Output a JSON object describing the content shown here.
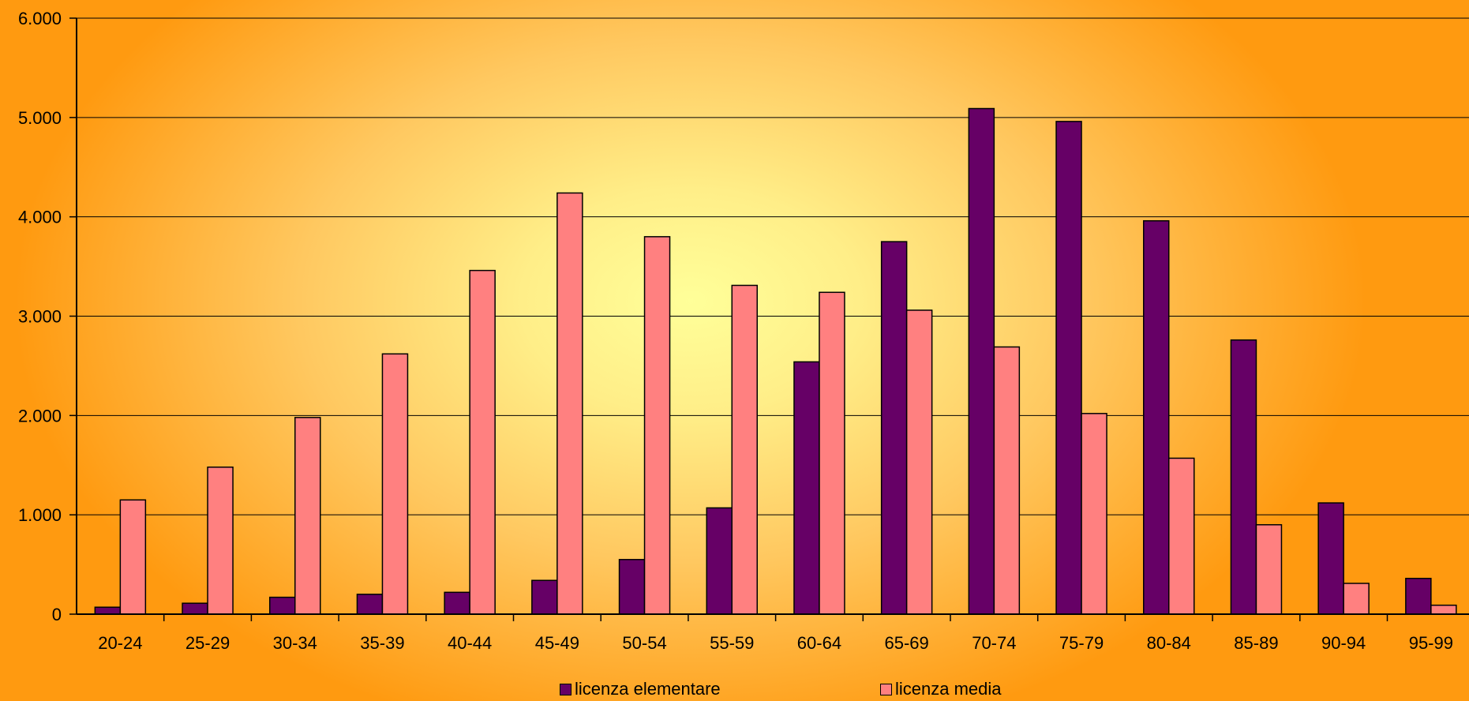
{
  "chart_data": {
    "type": "bar",
    "categories": [
      "20-24",
      "25-29",
      "30-34",
      "35-39",
      "40-44",
      "45-49",
      "50-54",
      "55-59",
      "60-64",
      "65-69",
      "70-74",
      "75-79",
      "80-84",
      "85-89",
      "90-94",
      "95-99"
    ],
    "series": [
      {
        "name": "licenza elementare",
        "color": "#660066",
        "values": [
          70,
          110,
          170,
          200,
          220,
          340,
          550,
          1070,
          2540,
          3750,
          5090,
          4960,
          3960,
          2760,
          1120,
          360
        ]
      },
      {
        "name": "licenza media",
        "color": "#ff8080",
        "values": [
          1150,
          1480,
          1980,
          2620,
          3460,
          4240,
          3800,
          3310,
          3240,
          3060,
          2690,
          2020,
          1570,
          900,
          310,
          90
        ]
      }
    ],
    "yticks": [
      "0",
      "1.000",
      "2.000",
      "3.000",
      "4.000",
      "5.000",
      "6.000"
    ],
    "ylim": [
      0,
      6000
    ],
    "grid": true,
    "legend_position": "bottom",
    "title": "",
    "xlabel": "",
    "ylabel": ""
  }
}
